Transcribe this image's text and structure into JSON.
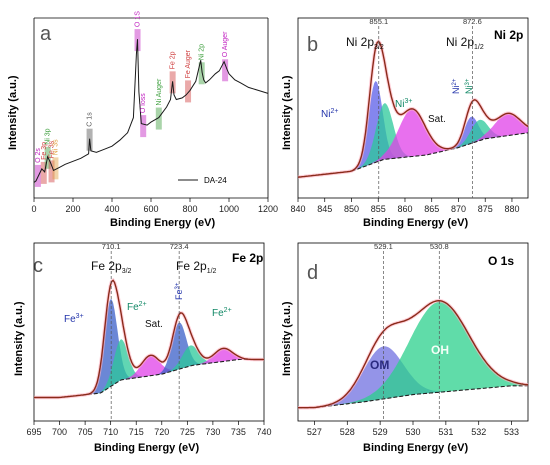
{
  "chart_data": [
    {
      "panel": "a",
      "type": "line",
      "xlabel": "Binding Energy (eV)",
      "ylabel": "Intensity (a.u.)",
      "xlim": [
        0,
        1200
      ],
      "xticks": [
        0,
        200,
        400,
        600,
        800,
        1000,
        1200
      ],
      "legend": "DA-24",
      "color": "#1a1a1a",
      "x": [
        0,
        10,
        25,
        40,
        55,
        70,
        85,
        100,
        130,
        160,
        200,
        240,
        280,
        285,
        292,
        320,
        360,
        400,
        440,
        480,
        510,
        525,
        531,
        538,
        550,
        580,
        600,
        640,
        680,
        700,
        711,
        718,
        730,
        760,
        780,
        800,
        830,
        855,
        862,
        870,
        880,
        900,
        930,
        950,
        975,
        990,
        1000,
        1030,
        1060,
        1100,
        1150,
        1200
      ],
      "y": [
        5,
        6,
        10,
        14,
        12,
        22,
        18,
        13,
        15,
        17,
        19,
        21,
        24,
        34,
        26,
        25,
        27,
        29,
        33,
        38,
        48,
        90,
        100,
        65,
        44,
        43,
        45,
        48,
        55,
        60,
        72,
        63,
        60,
        61,
        63,
        66,
        72,
        86,
        78,
        73,
        71,
        73,
        77,
        79,
        85,
        80,
        77,
        73,
        71,
        68,
        66,
        64
      ],
      "ylim": [
        0,
        110
      ],
      "labels": [
        {
          "text": "O 2s",
          "x": 20,
          "color": "#c020c0"
        },
        {
          "text": "Fe 3p",
          "x": 50,
          "color": "#d04040"
        },
        {
          "text": "Ni 3p",
          "x": 70,
          "color": "#40a040"
        },
        {
          "text": "Fe 3s",
          "x": 90,
          "color": "#d04040"
        },
        {
          "text": "Ni 3s",
          "x": 110,
          "color": "#e0a040"
        },
        {
          "text": "C 1s",
          "x": 285,
          "color": "#555555"
        },
        {
          "text": "O 1S",
          "x": 531,
          "color": "#c020c0"
        },
        {
          "text": "O loss",
          "x": 560,
          "color": "#c020c0"
        },
        {
          "text": "Ni Auger",
          "x": 640,
          "color": "#40a040"
        },
        {
          "text": "Fe 2p",
          "x": 711,
          "color": "#d04040"
        },
        {
          "text": "Fe Auger",
          "x": 790,
          "color": "#d04040"
        },
        {
          "text": "Ni 2p",
          "x": 860,
          "color": "#40a040"
        },
        {
          "text": "O Auger",
          "x": 980,
          "color": "#c020c0"
        }
      ]
    },
    {
      "panel": "b",
      "type": "area",
      "title": "Ni 2p",
      "xlabel": "Binding Energy (eV)",
      "ylabel": "Intensity (a.u.)",
      "xlim": [
        840,
        883
      ],
      "xticks": [
        840,
        845,
        850,
        855,
        860,
        865,
        870,
        875,
        880
      ],
      "ylim": [
        0,
        100
      ],
      "peak_positions": [
        855.1,
        872.6
      ],
      "labels": {
        "ni_2p32": "Ni 2p",
        "ni_2p32_sub": "3/2",
        "ni_2p12": "Ni 2p",
        "ni_2p12_sub": "1/2",
        "ni2": "Ni",
        "ni2_sup": "2+",
        "ni3": "Ni",
        "ni3_sup": "3+",
        "sat": "Sat."
      },
      "components": [
        {
          "name": "Ni2+",
          "color": "#5b5ee8",
          "center": 854.5,
          "height": 55,
          "width": 1.3
        },
        {
          "name": "Ni3+",
          "color": "#2bc89a",
          "center": 856.2,
          "height": 38,
          "width": 1.6
        },
        {
          "name": "Sat.",
          "color": "#e040e8",
          "center": 861.3,
          "height": 32,
          "width": 2.5
        },
        {
          "name": "Ni2+ (2p1/2)",
          "color": "#5b5ee8",
          "center": 872.4,
          "height": 18,
          "width": 1.3
        },
        {
          "name": "Ni3+ (2p1/2)",
          "color": "#2bc89a",
          "center": 873.9,
          "height": 14,
          "width": 1.6
        },
        {
          "name": "Sat. (2p1/2)",
          "color": "#e040e8",
          "center": 879.2,
          "height": 15,
          "width": 2.4
        }
      ],
      "background": [
        [
          840,
          10
        ],
        [
          850,
          14
        ],
        [
          856,
          22
        ],
        [
          864,
          25
        ],
        [
          870,
          30
        ],
        [
          875,
          36
        ],
        [
          883,
          40
        ]
      ]
    },
    {
      "panel": "c",
      "type": "area",
      "title": "Fe 2p",
      "xlabel": "Binding Energy (eV)",
      "ylabel": "Intensity (a.u.)",
      "xlim": [
        695,
        740
      ],
      "xticks": [
        695,
        700,
        705,
        710,
        715,
        720,
        725,
        730,
        735,
        740
      ],
      "ylim": [
        0,
        100
      ],
      "peak_positions": [
        710.1,
        723.4
      ],
      "labels": {
        "fe_2p32": "Fe 2p",
        "fe_2p32_sub": "3/2",
        "fe_2p12": "Fe 2p",
        "fe_2p12_sub": "1/2",
        "fe3": "Fe",
        "fe3_sup": "3+",
        "fe2": "Fe",
        "fe2_sup": "2+",
        "fe3b": "Fe",
        "fe3b_sup": "3+",
        "fe2b": "Fe",
        "fe2b_sup": "2+",
        "sat": "Sat."
      },
      "components": [
        {
          "name": "Fe3+",
          "color": "#3a5fc8",
          "center": 710.0,
          "height": 60,
          "width": 1.3
        },
        {
          "name": "Fe2+",
          "color": "#2bc89a",
          "center": 712.0,
          "height": 28,
          "width": 1.4
        },
        {
          "name": "Sat.",
          "color": "#e040e8",
          "center": 717.8,
          "height": 14,
          "width": 1.8
        },
        {
          "name": "Fe3+ (2p1/2)",
          "color": "#3a5fc8",
          "center": 723.4,
          "height": 32,
          "width": 1.4
        },
        {
          "name": "Fe2+ (2p1/2)",
          "color": "#2bc89a",
          "center": 725.6,
          "height": 14,
          "width": 1.6
        },
        {
          "name": "Sat. (2p1/2)",
          "color": "#e040e8",
          "center": 732.0,
          "height": 9,
          "width": 1.8
        }
      ],
      "background": [
        [
          700,
          12
        ],
        [
          708,
          15
        ],
        [
          712,
          24
        ],
        [
          720,
          28
        ],
        [
          726,
          34
        ],
        [
          735,
          38
        ]
      ]
    },
    {
      "panel": "d",
      "type": "area",
      "title": "O 1s",
      "xlabel": "Binding Energy (eV)",
      "ylabel": "Intensity (a.u.)",
      "xlim": [
        526.5,
        533.5
      ],
      "xticks": [
        527,
        528,
        529,
        530,
        531,
        532,
        533
      ],
      "ylim": [
        0,
        100
      ],
      "peak_positions": [
        529.1,
        530.8
      ],
      "labels": {
        "om": "OM",
        "oh": "OH"
      },
      "components": [
        {
          "name": "OM",
          "color": "#7070e0",
          "center": 529.1,
          "height": 36,
          "width": 0.6
        },
        {
          "name": "OH",
          "color": "#2bd08c",
          "center": 530.8,
          "height": 62,
          "width": 0.9
        }
      ],
      "background": [
        [
          527.0,
          5
        ],
        [
          528.5,
          9
        ],
        [
          530,
          14
        ],
        [
          531.5,
          17
        ],
        [
          533,
          20
        ]
      ]
    }
  ]
}
